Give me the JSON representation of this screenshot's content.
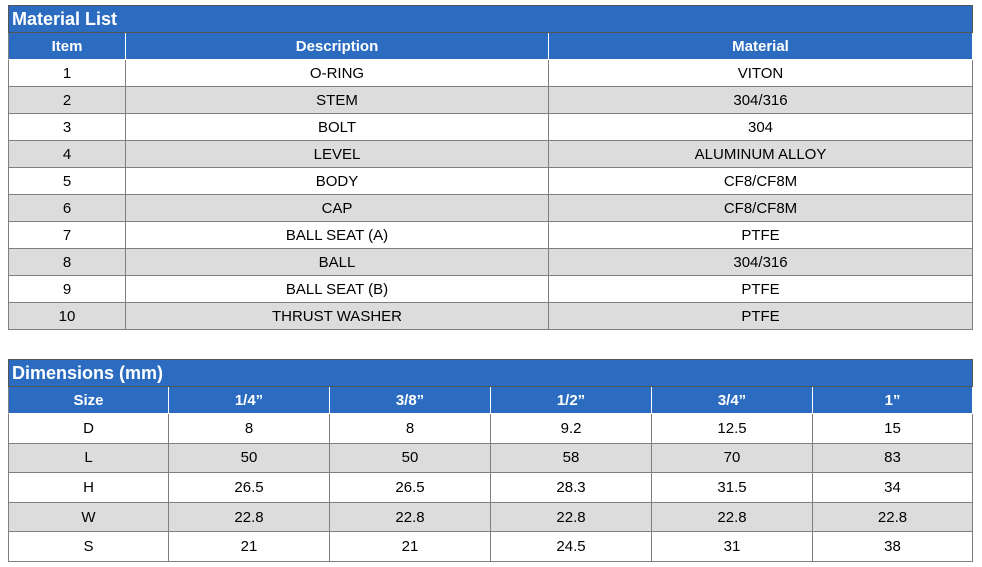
{
  "material_list": {
    "title": "Material List",
    "headers": [
      "Item",
      "Description",
      "Material"
    ],
    "rows": [
      [
        1,
        "O-RING",
        "VITON"
      ],
      [
        2,
        "STEM",
        "304/316"
      ],
      [
        3,
        "BOLT",
        "304"
      ],
      [
        4,
        "LEVEL",
        "ALUMINUM ALLOY"
      ],
      [
        5,
        "BODY",
        "CF8/CF8M"
      ],
      [
        6,
        "CAP",
        "CF8/CF8M"
      ],
      [
        7,
        "BALL SEAT (A)",
        "PTFE"
      ],
      [
        8,
        "BALL",
        "304/316"
      ],
      [
        9,
        "BALL SEAT (B)",
        "PTFE"
      ],
      [
        10,
        "THRUST WASHER",
        "PTFE"
      ]
    ]
  },
  "dimensions": {
    "title": "Dimensions (mm)",
    "headers": [
      "Size",
      "1/4”",
      "3/8”",
      "1/2”",
      "3/4”",
      "1”"
    ],
    "rows": [
      [
        "D",
        8,
        8,
        9.2,
        12.5,
        15
      ],
      [
        "L",
        50,
        50,
        58,
        70,
        83
      ],
      [
        "H",
        26.5,
        26.5,
        28.3,
        31.5,
        34
      ],
      [
        "W",
        22.8,
        22.8,
        22.8,
        22.8,
        22.8
      ],
      [
        "S",
        21,
        21,
        24.5,
        31,
        38
      ]
    ]
  }
}
